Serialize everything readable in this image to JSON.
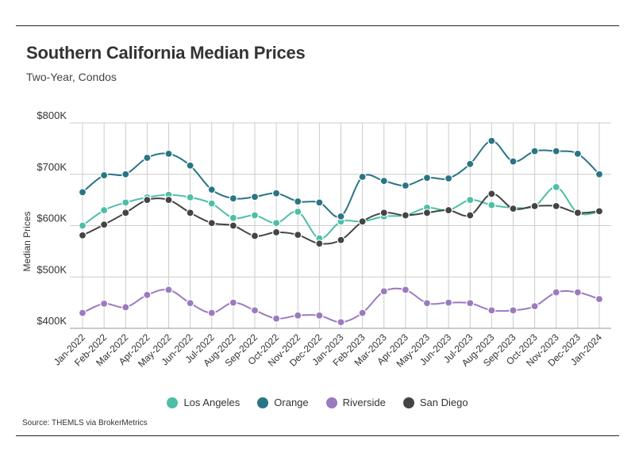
{
  "header": {
    "title": "Southern California Median Prices",
    "subtitle": "Two-Year, Condos"
  },
  "source": "Source:  THEMLS via BrokerMetrics",
  "colors": {
    "los_angeles": "#4dbfa6",
    "orange": "#2a7585",
    "riverside": "#9b7bbf",
    "san_diego": "#444444",
    "grid": "#cccccc"
  },
  "chart_data": {
    "type": "line",
    "title": "Southern California Median Prices",
    "subtitle": "Two-Year, Condos",
    "xlabel": "",
    "ylabel": "Median Prices",
    "ylim": [
      400,
      800
    ],
    "yticks": [
      400,
      500,
      600,
      700,
      800
    ],
    "ytick_labels": [
      "$400K",
      "$500K",
      "$600K",
      "$700K",
      "$800K"
    ],
    "grid": true,
    "legend_position": "bottom",
    "categories": [
      "Jan-2022",
      "Feb-2022",
      "Mar-2022",
      "Apr-2022",
      "May-2022",
      "Jun-2022",
      "Jul-2022",
      "Aug-2022",
      "Sep-2022",
      "Oct-2022",
      "Nov-2022",
      "Dec-2022",
      "Jan-2023",
      "Feb-2023",
      "Mar-2023",
      "Apr-2023",
      "May-2023",
      "Jun-2023",
      "Jul-2023",
      "Aug-2023",
      "Sep-2023",
      "Oct-2023",
      "Nov-2023",
      "Dec-2023",
      "Jan-2024"
    ],
    "series": [
      {
        "name": "Los Angeles",
        "color": "#4dbfa6",
        "values": [
          600,
          630,
          645,
          655,
          660,
          655,
          643,
          615,
          620,
          605,
          627,
          575,
          608,
          608,
          618,
          620,
          635,
          630,
          650,
          640,
          635,
          638,
          675,
          625,
          627
        ]
      },
      {
        "name": "Orange",
        "color": "#2a7585",
        "values": [
          665,
          698,
          700,
          732,
          740,
          717,
          670,
          653,
          656,
          663,
          647,
          645,
          618,
          695,
          687,
          678,
          693,
          692,
          720,
          765,
          725,
          745,
          745,
          740,
          700
        ]
      },
      {
        "name": "Riverside",
        "color": "#9b7bbf",
        "values": [
          430,
          448,
          441,
          465,
          475,
          449,
          430,
          450,
          435,
          419,
          425,
          425,
          412,
          430,
          472,
          475,
          449,
          450,
          449,
          435,
          435,
          443,
          470,
          470,
          457
        ]
      },
      {
        "name": "San Diego",
        "color": "#444444",
        "values": [
          581,
          602,
          625,
          650,
          650,
          625,
          605,
          600,
          580,
          587,
          582,
          565,
          572,
          608,
          625,
          620,
          625,
          630,
          620,
          662,
          633,
          638,
          638,
          625,
          628
        ]
      }
    ]
  }
}
